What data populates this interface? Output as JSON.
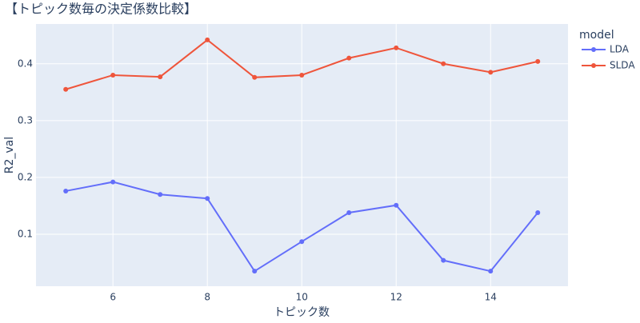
{
  "chart_data": {
    "type": "line",
    "title": "【トピック数毎の決定係数比較】",
    "x_label": "トピック数",
    "y_label": "R2_val",
    "legend_title": "model",
    "x": [
      5,
      6,
      7,
      8,
      9,
      10,
      11,
      12,
      13,
      14,
      15
    ],
    "series": [
      {
        "name": "LDA",
        "color": "#636efa",
        "values": [
          0.176,
          0.192,
          0.17,
          0.163,
          0.035,
          0.087,
          0.138,
          0.151,
          0.054,
          0.035,
          0.138
        ]
      },
      {
        "name": "SLDA",
        "color": "#ef553b",
        "values": [
          0.355,
          0.38,
          0.377,
          0.442,
          0.376,
          0.38,
          0.41,
          0.428,
          0.4,
          0.385,
          0.404
        ]
      }
    ],
    "xlim": [
      4.37,
      15.64
    ],
    "xticks": [
      6,
      8,
      10,
      12,
      14
    ],
    "ylim": [
      0.0085,
      0.47
    ],
    "yticks": [
      0.1,
      0.2,
      0.3,
      0.4
    ],
    "grid": true
  }
}
